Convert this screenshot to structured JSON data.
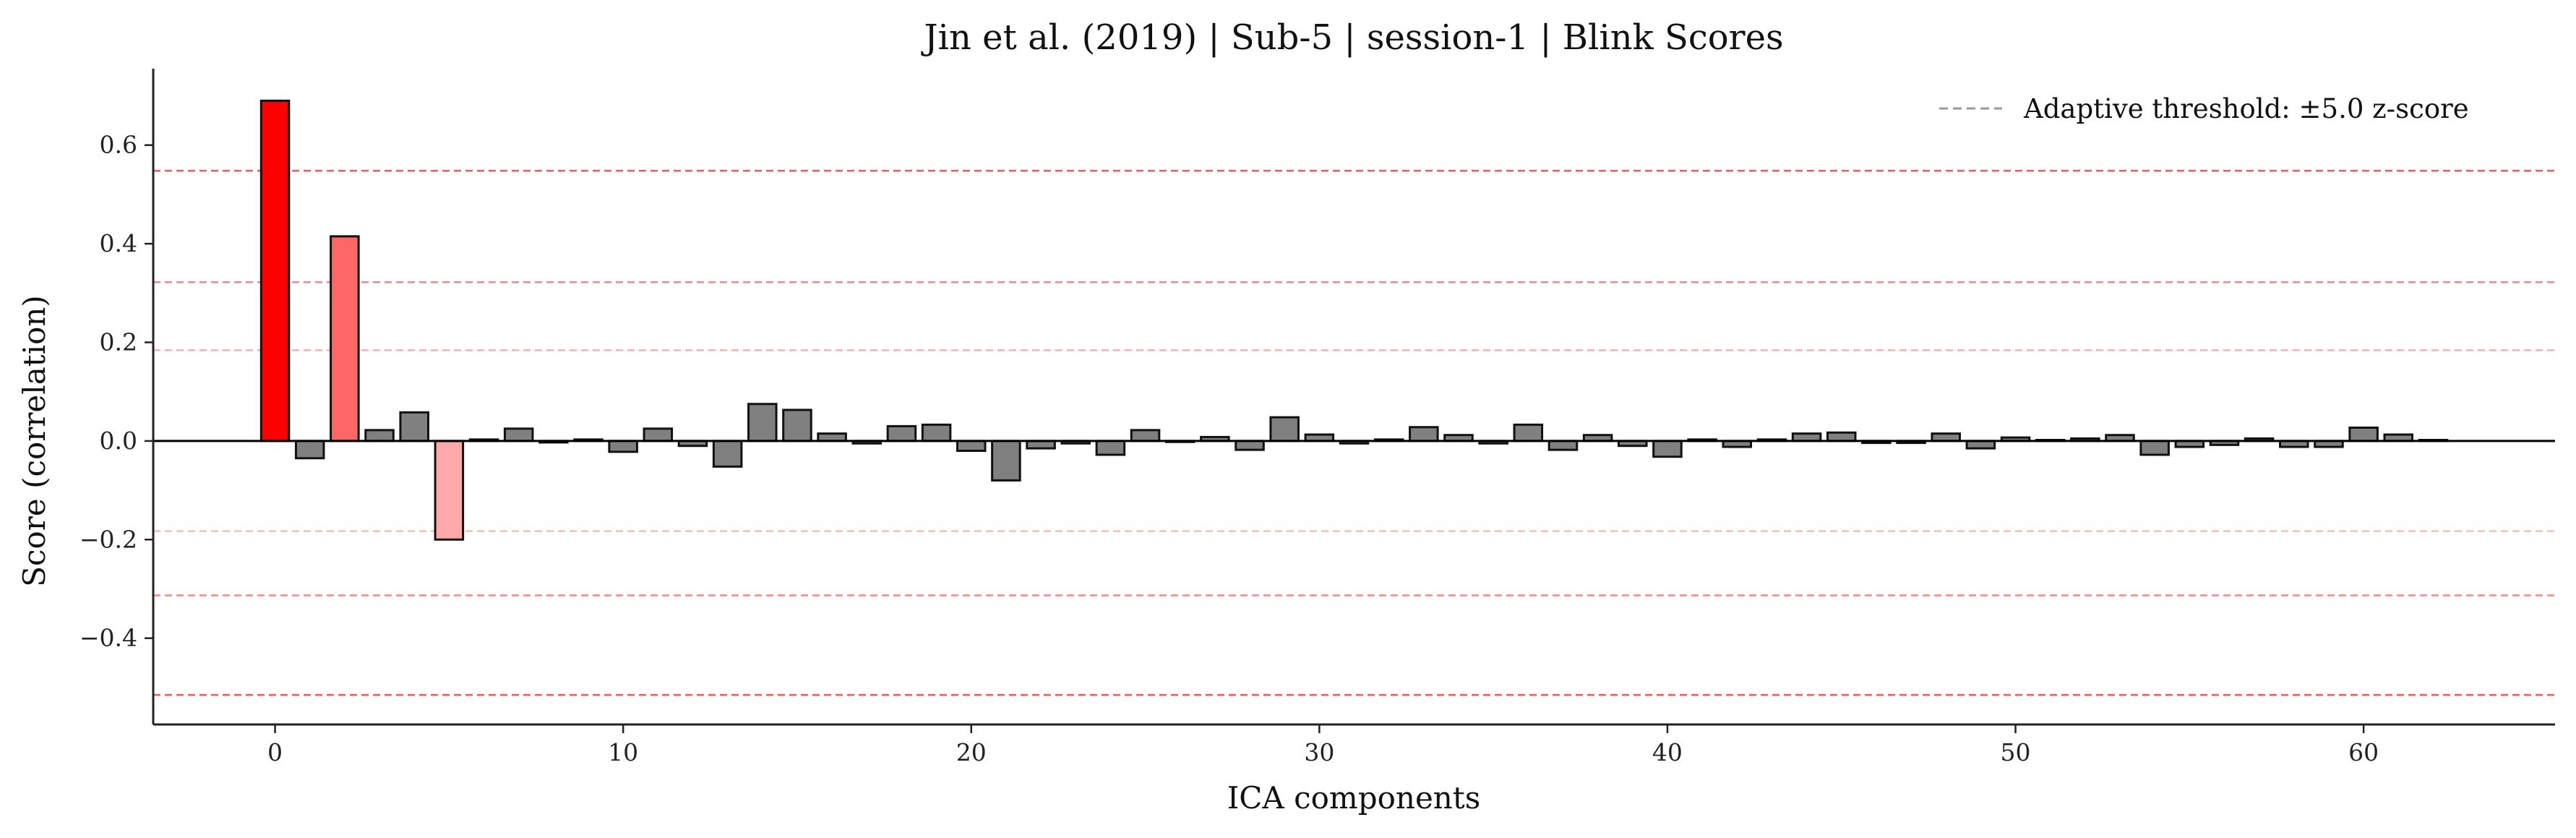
{
  "chart_data": {
    "type": "bar",
    "title": "Jin et al. (2019) | Sub-5 | session-1 | Blink Scores",
    "xlabel": "ICA components",
    "ylabel": "Score (correlation)",
    "xlim": [
      -3.5,
      65.5
    ],
    "ylim": [
      -0.575,
      0.755
    ],
    "x_ticks": [
      0,
      10,
      20,
      30,
      40,
      50,
      60
    ],
    "y_ticks": [
      -0.4,
      -0.2,
      0.0,
      0.2,
      0.4,
      0.6
    ],
    "y_tick_labels": [
      "−0.4",
      "−0.2",
      "0.0",
      "0.2",
      "0.4",
      "0.6"
    ],
    "x": [
      0,
      1,
      2,
      3,
      4,
      5,
      6,
      7,
      8,
      9,
      10,
      11,
      12,
      13,
      14,
      15,
      16,
      17,
      18,
      19,
      20,
      21,
      22,
      23,
      24,
      25,
      26,
      27,
      28,
      29,
      30,
      31,
      32,
      33,
      34,
      35,
      36,
      37,
      38,
      39,
      40,
      41,
      42,
      43,
      44,
      45,
      46,
      47,
      48,
      49,
      50,
      51,
      52,
      53,
      54,
      55,
      56,
      57,
      58,
      59,
      60,
      61,
      62
    ],
    "values": [
      0.69,
      -0.035,
      0.415,
      0.022,
      0.058,
      -0.2,
      0.003,
      0.025,
      -0.003,
      0.003,
      -0.022,
      0.025,
      -0.01,
      -0.052,
      0.075,
      0.063,
      0.015,
      -0.005,
      0.03,
      0.033,
      -0.02,
      -0.08,
      -0.015,
      -0.005,
      -0.028,
      0.022,
      -0.002,
      0.008,
      -0.018,
      0.048,
      0.013,
      -0.005,
      0.003,
      0.028,
      0.012,
      -0.005,
      0.033,
      -0.018,
      0.012,
      -0.01,
      -0.032,
      0.003,
      -0.012,
      0.003,
      0.015,
      0.017,
      -0.004,
      -0.004,
      0.015,
      -0.015,
      0.007,
      0.002,
      0.005,
      0.012,
      -0.028,
      -0.012,
      -0.008,
      0.005,
      -0.012,
      -0.012,
      0.027,
      0.013,
      0.002
    ],
    "bar_colors": {
      "0": "#ff0000",
      "2": "#ff6666",
      "5": "#ffaaaa",
      "default": "#808080"
    },
    "bar_edge_color": "#111111",
    "threshold_lines": [
      {
        "y": 0.548,
        "color": "#ee5a5a",
        "opacity": 1.0
      },
      {
        "y": 0.322,
        "color": "#f08a8a",
        "opacity": 1.0
      },
      {
        "y": 0.184,
        "color": "#f5b0b0",
        "opacity": 1.0
      },
      {
        "y": -0.183,
        "color": "#f3c0b0",
        "opacity": 1.0
      },
      {
        "y": -0.313,
        "color": "#f08a8a",
        "opacity": 1.0
      },
      {
        "y": -0.515,
        "color": "#ee5a5a",
        "opacity": 1.0
      }
    ],
    "legend": {
      "label": "Adaptive threshold: ±5.0 z-score",
      "placement": "top-right",
      "line_color": "#999999"
    },
    "grid": false
  }
}
